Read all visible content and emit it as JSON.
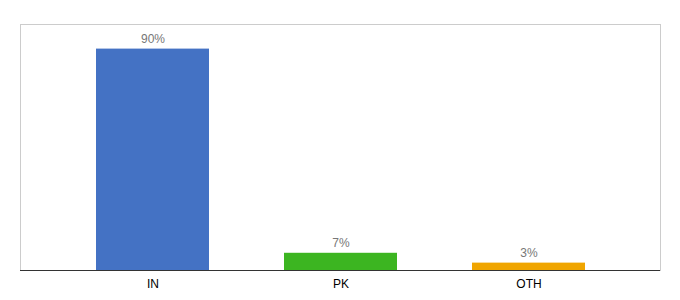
{
  "chart_data": {
    "type": "bar",
    "categories": [
      "IN",
      "PK",
      "OTH"
    ],
    "values": [
      90,
      7,
      3
    ],
    "value_labels": [
      "90%",
      "7%",
      "3%"
    ],
    "colors": [
      "#4472c4",
      "#3cb521",
      "#f0a500"
    ],
    "ylim": [
      0,
      100
    ],
    "data_labels": true,
    "tick_labels": "x"
  }
}
